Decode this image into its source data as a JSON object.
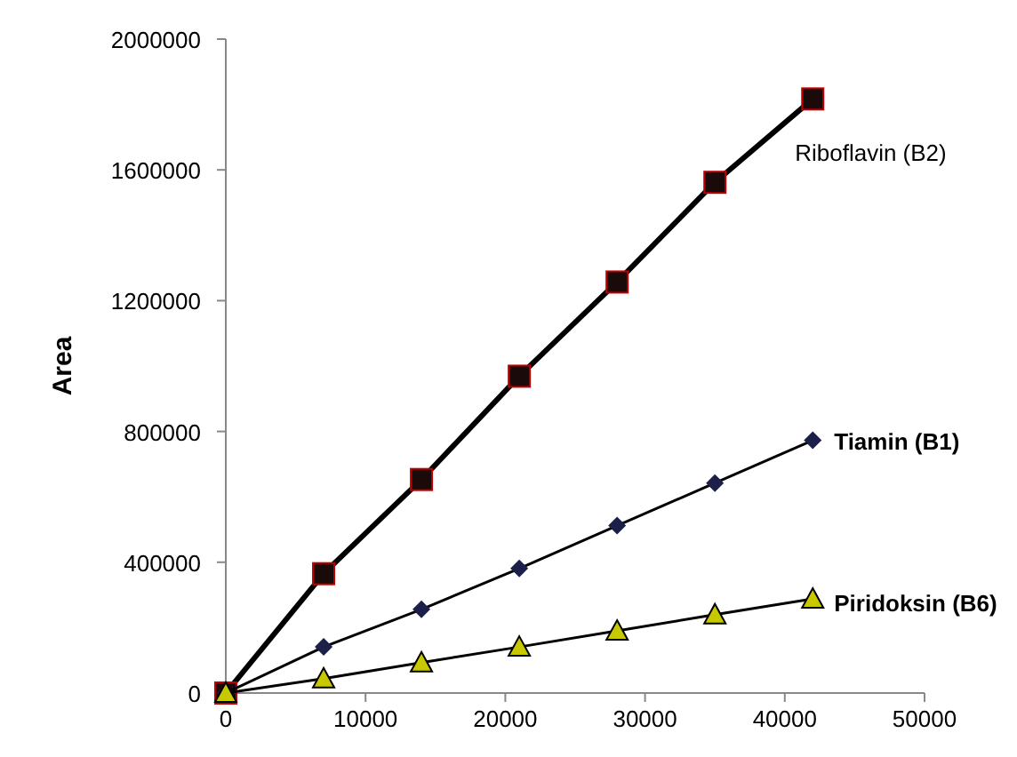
{
  "chart_data": {
    "type": "line",
    "ylabel": "Area",
    "x": [
      0,
      7000,
      14000,
      21000,
      28000,
      35000,
      42000
    ],
    "xlim": [
      0,
      50000
    ],
    "xticks": [
      0,
      10000,
      20000,
      30000,
      40000,
      50000
    ],
    "ylim": [
      0,
      2000000
    ],
    "yticks": [
      0,
      400000,
      800000,
      1200000,
      1600000,
      2000000
    ],
    "legend": false,
    "grid": false,
    "series": [
      {
        "name": "Riboflavin (B2)",
        "color": "#1a0a0a",
        "marker": "square",
        "values": [
          0,
          365000,
          653000,
          969000,
          1257000,
          1562000,
          1817000
        ]
      },
      {
        "name": "Tiamin (B1)",
        "color": "#1b1f4a",
        "marker": "diamond",
        "values": [
          0,
          141000,
          256000,
          381000,
          512000,
          642000,
          773000
        ]
      },
      {
        "name": "Piridoksin (B6)",
        "color": "#c8c800",
        "marker": "triangle",
        "values": [
          0,
          44000,
          93000,
          141000,
          190000,
          240000,
          288000
        ]
      }
    ]
  }
}
